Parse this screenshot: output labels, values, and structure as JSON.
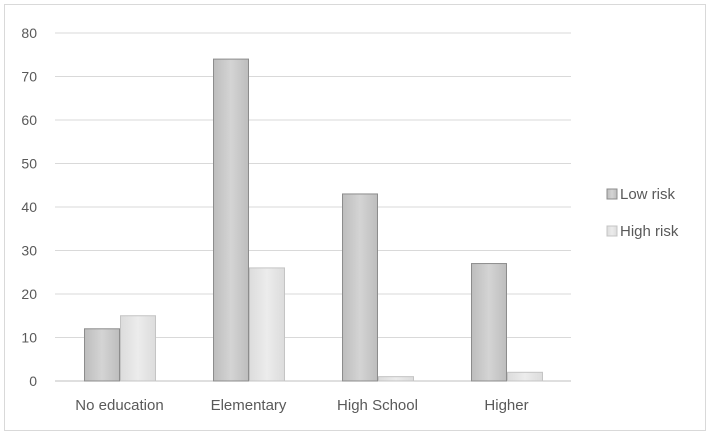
{
  "chart_data": {
    "type": "bar",
    "title": "",
    "xlabel": "",
    "ylabel": "",
    "categories": [
      "No education",
      "Elementary",
      "High School",
      "Higher"
    ],
    "series": [
      {
        "name": "Low risk",
        "values": [
          12,
          74,
          43,
          27
        ],
        "color": "#c8c8c8"
      },
      {
        "name": "High risk",
        "values": [
          15,
          26,
          1,
          2
        ],
        "color": "#e2e2e2"
      }
    ],
    "ylim": [
      0,
      80
    ],
    "yticks": [
      0,
      10,
      20,
      30,
      40,
      50,
      60,
      70,
      80
    ],
    "grid": true,
    "legend_position": "right"
  }
}
